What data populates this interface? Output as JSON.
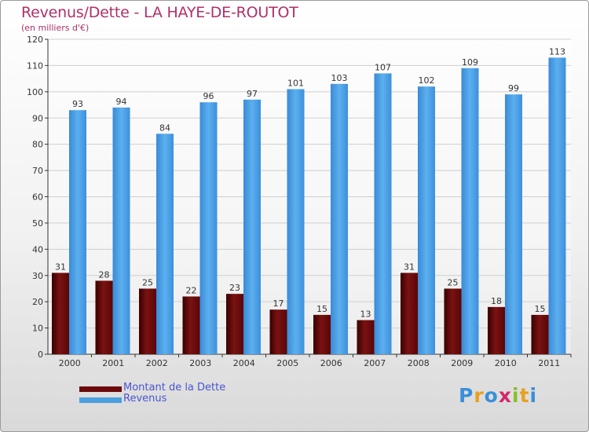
{
  "title": "Revenus/Dette - LA HAYE-DE-ROUTOT",
  "subtitle": "(en milliers d'€)",
  "logo_text": "Proxiti",
  "colors": {
    "title": "#b0306a",
    "dette": "#6b0a0a",
    "revenus": "#4a9fe0",
    "legend_text": "#4a55d0"
  },
  "legend": [
    {
      "label": "Montant de la Dette",
      "color": "#6b0a0a"
    },
    {
      "label": "Revenus",
      "color": "#4a9fe0"
    }
  ],
  "chart_data": {
    "type": "bar",
    "title": "Revenus/Dette - LA HAYE-DE-ROUTOT",
    "subtitle": "(en milliers d'€)",
    "categories": [
      "2000",
      "2001",
      "2002",
      "2003",
      "2004",
      "2005",
      "2006",
      "2007",
      "2008",
      "2009",
      "2010",
      "2011"
    ],
    "series": [
      {
        "name": "Montant de la Dette",
        "values": [
          31,
          28,
          25,
          22,
          23,
          17,
          15,
          13,
          31,
          25,
          18,
          15
        ]
      },
      {
        "name": "Revenus",
        "values": [
          93,
          94,
          84,
          96,
          97,
          101,
          103,
          107,
          102,
          109,
          99,
          113
        ]
      }
    ],
    "yticks": [
      0,
      10,
      20,
      30,
      40,
      50,
      60,
      70,
      80,
      90,
      100,
      110,
      120
    ],
    "ylim": [
      0,
      120
    ],
    "grid": true,
    "legend_position": "bottom-left"
  }
}
